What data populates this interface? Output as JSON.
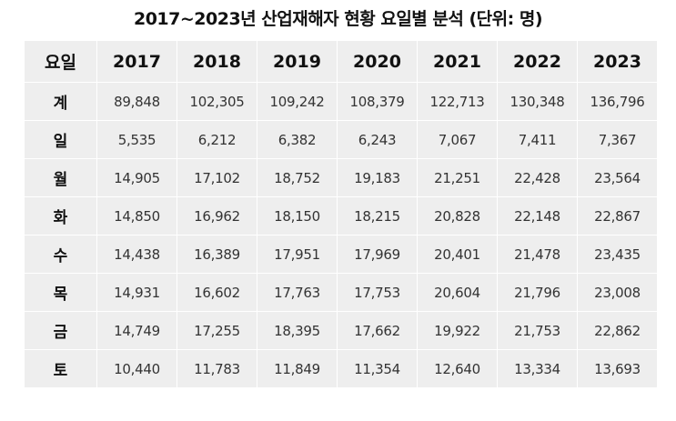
{
  "chart_data": {
    "type": "table",
    "title": "2017~2023년 산업재해자 현황 요일별 분석 (단위: 명)",
    "header_label": "요일",
    "columns": [
      "2017",
      "2018",
      "2019",
      "2020",
      "2021",
      "2022",
      "2023"
    ],
    "rows": [
      {
        "label": "계",
        "values": [
          "89,848",
          "102,305",
          "109,242",
          "108,379",
          "122,713",
          "130,348",
          "136,796"
        ]
      },
      {
        "label": "일",
        "values": [
          "5,535",
          "6,212",
          "6,382",
          "6,243",
          "7,067",
          "7,411",
          "7,367"
        ]
      },
      {
        "label": "월",
        "values": [
          "14,905",
          "17,102",
          "18,752",
          "19,183",
          "21,251",
          "22,428",
          "23,564"
        ]
      },
      {
        "label": "화",
        "values": [
          "14,850",
          "16,962",
          "18,150",
          "18,215",
          "20,828",
          "22,148",
          "22,867"
        ]
      },
      {
        "label": "수",
        "values": [
          "14,438",
          "16,389",
          "17,951",
          "17,969",
          "20,401",
          "21,478",
          "23,435"
        ]
      },
      {
        "label": "목",
        "values": [
          "14,931",
          "16,602",
          "17,763",
          "17,753",
          "20,604",
          "21,796",
          "23,008"
        ]
      },
      {
        "label": "금",
        "values": [
          "14,749",
          "17,255",
          "18,395",
          "17,662",
          "19,922",
          "21,753",
          "22,862"
        ]
      },
      {
        "label": "토",
        "values": [
          "10,440",
          "11,783",
          "11,849",
          "11,354",
          "12,640",
          "13,334",
          "13,693"
        ]
      }
    ]
  },
  "colors": {
    "cell_background": "#eeeeee",
    "grid_line": "#ffffff",
    "text": "#111111",
    "value_text": "#333333"
  }
}
